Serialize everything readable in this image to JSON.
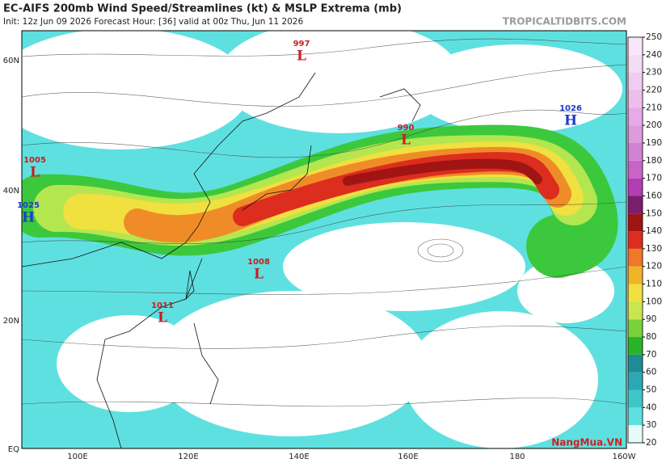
{
  "header": {
    "title": "EC-AIFS 200mb Wind Speed/Streamlines (kt) & MSLP Extrema (mb)",
    "subtitle": "Init: 12z Jun 09 2026   Forecast Hour: [36]   valid at 00z Thu, Jun 11 2026",
    "site": "TROPICALTIDBITS.COM"
  },
  "latitude_labels": [
    "60N",
    "40N",
    "20N",
    "EQ"
  ],
  "longitude_labels": [
    "100E",
    "120E",
    "140E",
    "160E",
    "180",
    "160W"
  ],
  "pressure_centers": [
    {
      "value": "997",
      "letter": "L"
    },
    {
      "value": "990",
      "letter": "L"
    },
    {
      "value": "1026",
      "letter": "H"
    },
    {
      "value": "1005",
      "letter": "L"
    },
    {
      "value": "1025",
      "letter": "H"
    },
    {
      "value": "1008",
      "letter": "L"
    },
    {
      "value": "1011",
      "letter": "L"
    }
  ],
  "colorbar": {
    "ticks": [
      20,
      30,
      40,
      50,
      60,
      70,
      80,
      90,
      100,
      110,
      120,
      130,
      140,
      150,
      160,
      170,
      180,
      190,
      200,
      210,
      220,
      230,
      240,
      250
    ],
    "colors": [
      "#e6fafa",
      "#5fe0e0",
      "#3cc8c8",
      "#2aa9b4",
      "#1e8c96",
      "#28b428",
      "#78d23c",
      "#c8e650",
      "#f0e040",
      "#f0b428",
      "#f07828",
      "#dc2d1e",
      "#a01414",
      "#7a1e6e",
      "#b43cb4",
      "#c864c8",
      "#d282d2",
      "#dc9bdc",
      "#e6aae6",
      "#ebbeeb",
      "#f0cdf0",
      "#f5dcf5",
      "#fae6fa"
    ]
  },
  "watermark": "NangMua.VN"
}
